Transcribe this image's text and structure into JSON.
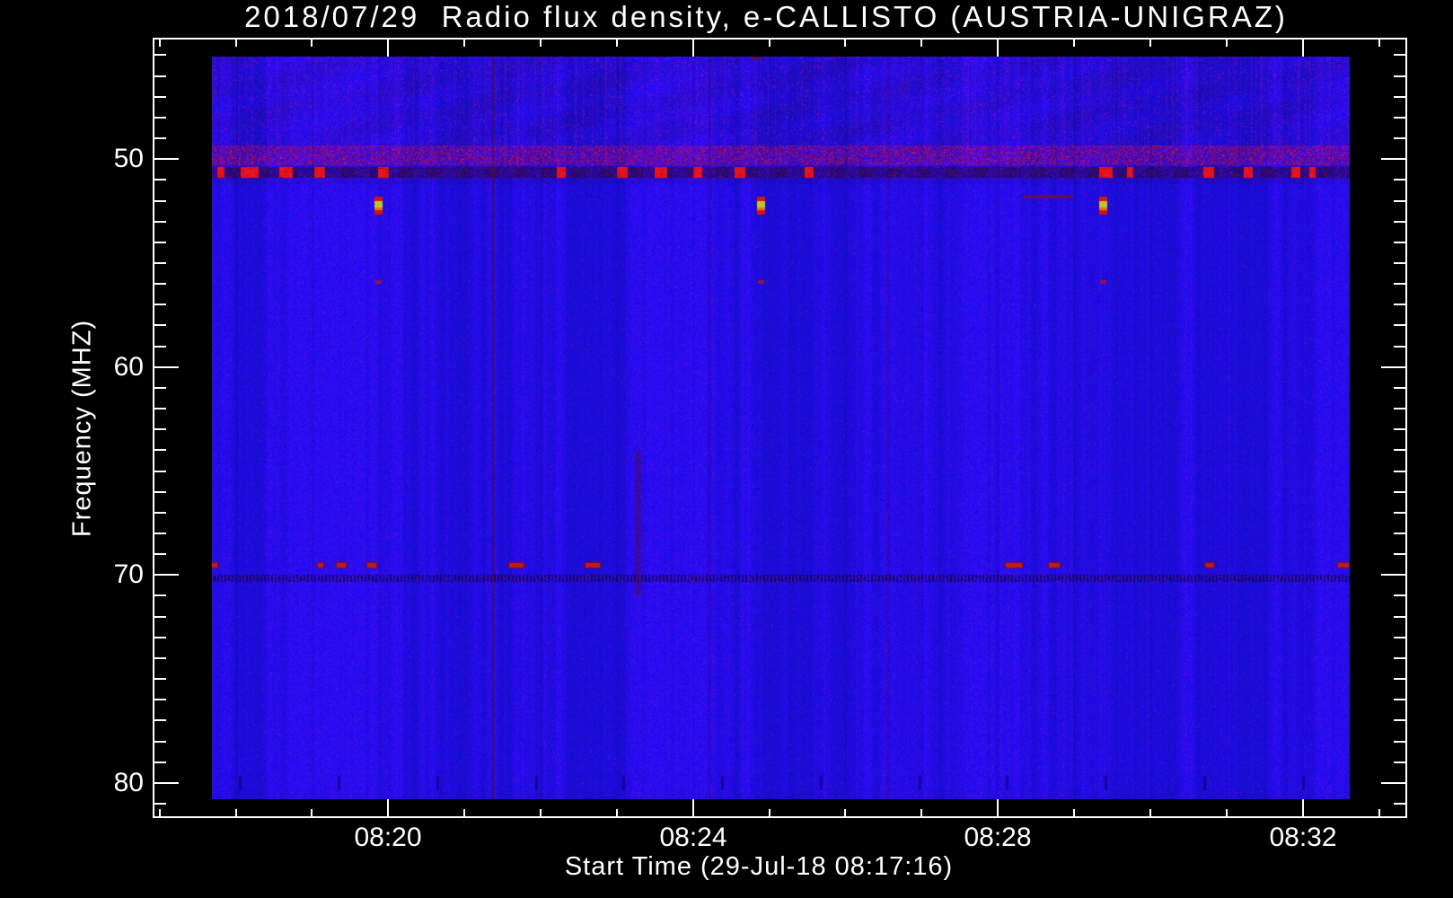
{
  "chart_data": {
    "type": "heatmap",
    "subtype": "radio-spectrogram",
    "title": "2018/07/29  Radio flux density, e-CALLISTO (AUSTRIA-UNIGRAZ)",
    "xlabel": "Start Time (29-Jul-18 08:17:16)",
    "ylabel": "Frequency (MHZ)",
    "legend": "none",
    "grid": "off",
    "x_axis": {
      "start_time_label": "08:17:16",
      "major_ticks": [
        {
          "label": "08:20",
          "min": 20
        },
        {
          "label": "08:24",
          "min": 24
        },
        {
          "label": "08:28",
          "min": 28
        },
        {
          "label": "08:32",
          "min": 32
        }
      ],
      "minor_first_min": 17,
      "minor_last_min": 33,
      "minor_step_min": 1,
      "frame_range_min": [
        16.91,
        33.37
      ],
      "image_range_min": [
        17.68,
        32.63
      ]
    },
    "y_axis": {
      "major_ticks": [
        {
          "label": "50",
          "mhz": 50
        },
        {
          "label": "60",
          "mhz": 60
        },
        {
          "label": "70",
          "mhz": 70
        },
        {
          "label": "80",
          "mhz": 80
        }
      ],
      "minor_first_mhz": 45,
      "minor_last_mhz": 81,
      "minor_step_mhz": 1,
      "frame_range_mhz": [
        44.16,
        81.69
      ],
      "image_range_mhz": [
        45.02,
        80.81
      ],
      "direction": "inverted"
    },
    "colors": {
      "background": "#000000",
      "axes_text": "#ffffff",
      "base_blue": "#2a17e8",
      "rfi_dark_blue": "#1d0c96",
      "speckle_red": "#b01828",
      "burst_red": "#d81400",
      "burst_orange": "#dd7716",
      "burst_core_yellow": "#c6c32a",
      "dark_column_red": "#5f0a1c"
    },
    "features": {
      "rfi_band_50": {
        "freq_mhz": [
          49.3,
          50.25
        ],
        "desc": "dense dark-red speckle band above 50 MHz"
      },
      "rfi_line_50": {
        "freq_mhz": [
          50.3,
          50.85
        ],
        "desc": "dark dashed interference line with bright red bursts",
        "bursts": [
          {
            "t": 0.008,
            "w": 8
          },
          {
            "t": 0.033,
            "w": 20
          },
          {
            "t": 0.065,
            "w": 15
          },
          {
            "t": 0.095,
            "w": 12
          },
          {
            "t": 0.151,
            "w": 12
          },
          {
            "t": 0.307,
            "w": 10
          },
          {
            "t": 0.361,
            "w": 12
          },
          {
            "t": 0.395,
            "w": 14
          },
          {
            "t": 0.427,
            "w": 10
          },
          {
            "t": 0.464,
            "w": 12
          },
          {
            "t": 0.525,
            "w": 10
          },
          {
            "t": 0.786,
            "w": 15
          },
          {
            "t": 0.807,
            "w": 7
          },
          {
            "t": 0.876,
            "w": 12
          },
          {
            "t": 0.911,
            "w": 10
          },
          {
            "t": 0.953,
            "w": 10
          },
          {
            "t": 0.967,
            "w": 7
          }
        ]
      },
      "rfi_line_70": {
        "freq_mhz": [
          69.95,
          70.32
        ],
        "desc": "fine dark dotted interference line"
      },
      "bright_bursts": {
        "freq_mhz": 52.2,
        "times": [
          0.146,
          0.482,
          0.783
        ],
        "desc": "yellow-core red bursts"
      },
      "dots_56": {
        "freq_mhz": 55.9,
        "times": [
          0.146,
          0.482,
          0.783
        ],
        "desc": "faint red dots below bursts"
      },
      "dots_69": {
        "freq_mhz": 69.5,
        "spots": [
          {
            "t": 0.002,
            "w": 6
          },
          {
            "t": 0.0955,
            "w": 6
          },
          {
            "t": 0.1136,
            "w": 10
          },
          {
            "t": 0.1405,
            "w": 10
          },
          {
            "t": 0.2676,
            "w": 16
          },
          {
            "t": 0.335,
            "w": 16
          },
          {
            "t": 0.7048,
            "w": 18
          },
          {
            "t": 0.7403,
            "w": 12
          },
          {
            "t": 0.8769,
            "w": 9
          },
          {
            "t": 0.9945,
            "w": 12
          }
        ]
      },
      "dash_52": {
        "freq_mhz": 51.75,
        "t_range": [
          0.713,
          0.757
        ],
        "desc": "dark red horizontal dash"
      },
      "dark_columns": [
        {
          "t": 0.247,
          "extent": "full"
        },
        {
          "t": 0.374,
          "extent": "lower"
        },
        {
          "t": 0.437,
          "extent": "faint"
        },
        {
          "t": 0.594,
          "extent": "faint"
        }
      ],
      "top_edge_dash": {
        "t": 0.478
      }
    }
  }
}
